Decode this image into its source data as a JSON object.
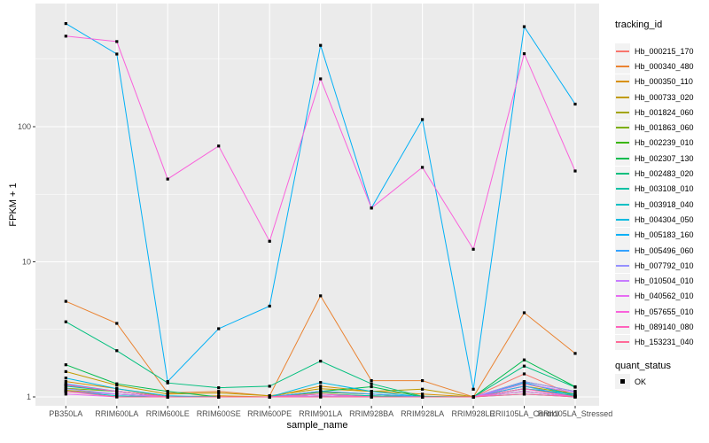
{
  "figure": {
    "y_axis": {
      "label": "FPKM + 1",
      "tick_labels": [
        "100",
        "10",
        "1"
      ]
    },
    "x_axis": {
      "label": "sample_name"
    },
    "legend": {
      "tracking_title": "tracking_id",
      "quant_title": "quant_status",
      "quant_items": [
        {
          "label": "OK",
          "key_shape": "black-square"
        }
      ]
    },
    "colors": {
      "panel_background": "#EBEBEB",
      "grid": "#FFFFFF",
      "tick_text": "#4D4D4D",
      "legend_key_background": "#F2F2F2",
      "point": "#000000"
    }
  },
  "chart_data": {
    "type": "line",
    "title": "",
    "xlabel": "sample_name",
    "ylabel": "FPKM + 1",
    "y_scale": "log10",
    "ylim": [
      0.86,
      815
    ],
    "y_major_ticks": [
      1,
      10,
      100
    ],
    "y_minor_ticks": [
      3.162,
      31.62,
      316.2
    ],
    "grid": "on",
    "legend_position": "right",
    "point_marker": "small black square (quant_status = OK) at every data point",
    "categories": [
      "PB350LA",
      "RRIM600LA",
      "RRIM600LE",
      "RRIM600SE",
      "RRIM600PE",
      "RRIM901LA",
      "RRIM928BA",
      "RRIM928LA",
      "RRIM928LE",
      "RRII105LA_Control",
      "RRII105LA_Stressed"
    ],
    "series": [
      {
        "name": "Hb_000215_170",
        "color": "#F8766D",
        "values": [
          1.22,
          1.1,
          1.0,
          1.0,
          1.0,
          1.1,
          1.05,
          1.0,
          1.0,
          1.48,
          1.02
        ]
      },
      {
        "name": "Hb_000340_480",
        "color": "#EA8331",
        "values": [
          5.1,
          3.5,
          1.07,
          1.1,
          1.02,
          5.6,
          1.32,
          1.32,
          1.0,
          4.2,
          2.1
        ]
      },
      {
        "name": "Hb_000350_110",
        "color": "#D89000",
        "values": [
          1.3,
          1.15,
          1.0,
          1.02,
          1.0,
          1.2,
          1.1,
          1.05,
          1.0,
          1.25,
          1.05
        ]
      },
      {
        "name": "Hb_000733_020",
        "color": "#C09B00",
        "values": [
          1.54,
          1.22,
          1.05,
          1.07,
          1.02,
          1.15,
          1.1,
          1.14,
          1.0,
          1.3,
          1.1
        ]
      },
      {
        "name": "Hb_001824_060",
        "color": "#A3A500",
        "values": [
          1.12,
          1.05,
          1.0,
          1.0,
          1.0,
          1.05,
          1.02,
          1.0,
          1.0,
          1.2,
          1.05
        ]
      },
      {
        "name": "Hb_001863_060",
        "color": "#7CAE00",
        "values": [
          1.16,
          1.1,
          1.0,
          1.0,
          1.0,
          1.08,
          1.05,
          1.0,
          1.0,
          1.15,
          1.02
        ]
      },
      {
        "name": "Hb_002239_010",
        "color": "#39B600",
        "values": [
          1.1,
          1.05,
          1.0,
          1.0,
          1.0,
          1.02,
          1.0,
          1.0,
          1.0,
          1.1,
          1.0
        ]
      },
      {
        "name": "Hb_002307_130",
        "color": "#00BB4E",
        "values": [
          1.73,
          1.25,
          1.1,
          1.0,
          1.0,
          1.1,
          1.19,
          1.0,
          1.0,
          1.88,
          1.19
        ]
      },
      {
        "name": "Hb_002483_020",
        "color": "#00BF7D",
        "values": [
          3.6,
          2.2,
          1.27,
          1.17,
          1.2,
          1.84,
          1.25,
          1.01,
          1.0,
          1.69,
          1.18
        ]
      },
      {
        "name": "Hb_003108_010",
        "color": "#00C1A3",
        "values": [
          1.2,
          1.1,
          1.0,
          1.0,
          1.0,
          1.05,
          1.02,
          1.0,
          1.0,
          1.15,
          1.05
        ]
      },
      {
        "name": "Hb_003918_040",
        "color": "#00BFC4",
        "values": [
          1.1,
          1.02,
          1.0,
          1.0,
          1.0,
          1.0,
          1.0,
          1.0,
          1.0,
          1.05,
          1.0
        ]
      },
      {
        "name": "Hb_004304_050",
        "color": "#00BAE0",
        "values": [
          1.38,
          1.15,
          1.02,
          1.0,
          1.0,
          1.28,
          1.1,
          1.0,
          1.0,
          1.28,
          1.02
        ]
      },
      {
        "name": "Hb_005183_160",
        "color": "#00B0F6",
        "values": [
          580,
          345,
          1.3,
          3.2,
          4.7,
          400,
          25,
          113,
          1.14,
          550,
          147
        ]
      },
      {
        "name": "Hb_005496_060",
        "color": "#35A2FF",
        "values": [
          1.25,
          1.1,
          1.0,
          1.0,
          1.0,
          1.1,
          1.05,
          1.0,
          1.0,
          1.2,
          1.0
        ]
      },
      {
        "name": "Hb_007792_010",
        "color": "#9590FF",
        "values": [
          1.15,
          1.05,
          1.0,
          1.0,
          1.0,
          1.05,
          1.0,
          1.0,
          1.0,
          1.3,
          1.1
        ]
      },
      {
        "name": "Hb_010504_010",
        "color": "#C77CFF",
        "values": [
          1.1,
          1.05,
          1.0,
          1.0,
          1.0,
          1.02,
          1.0,
          1.0,
          1.0,
          1.25,
          1.08
        ]
      },
      {
        "name": "Hb_040562_010",
        "color": "#E76BF3",
        "values": [
          1.05,
          1.0,
          1.0,
          1.0,
          1.0,
          1.0,
          1.0,
          1.0,
          1.0,
          1.1,
          1.0
        ]
      },
      {
        "name": "Hb_057655_010",
        "color": "#FA62DB",
        "values": [
          468,
          427,
          41,
          72,
          14.2,
          226,
          25,
          50,
          12.4,
          347,
          47
        ]
      },
      {
        "name": "Hb_089140_080",
        "color": "#FF62BC",
        "values": [
          1.23,
          1.1,
          1.0,
          1.0,
          1.0,
          1.05,
          1.0,
          1.0,
          1.0,
          1.15,
          1.0
        ]
      },
      {
        "name": "Hb_153231_040",
        "color": "#FF6A98",
        "values": [
          1.1,
          1.0,
          1.0,
          1.0,
          1.0,
          1.0,
          1.0,
          1.0,
          1.0,
          1.05,
          1.0
        ]
      }
    ]
  }
}
